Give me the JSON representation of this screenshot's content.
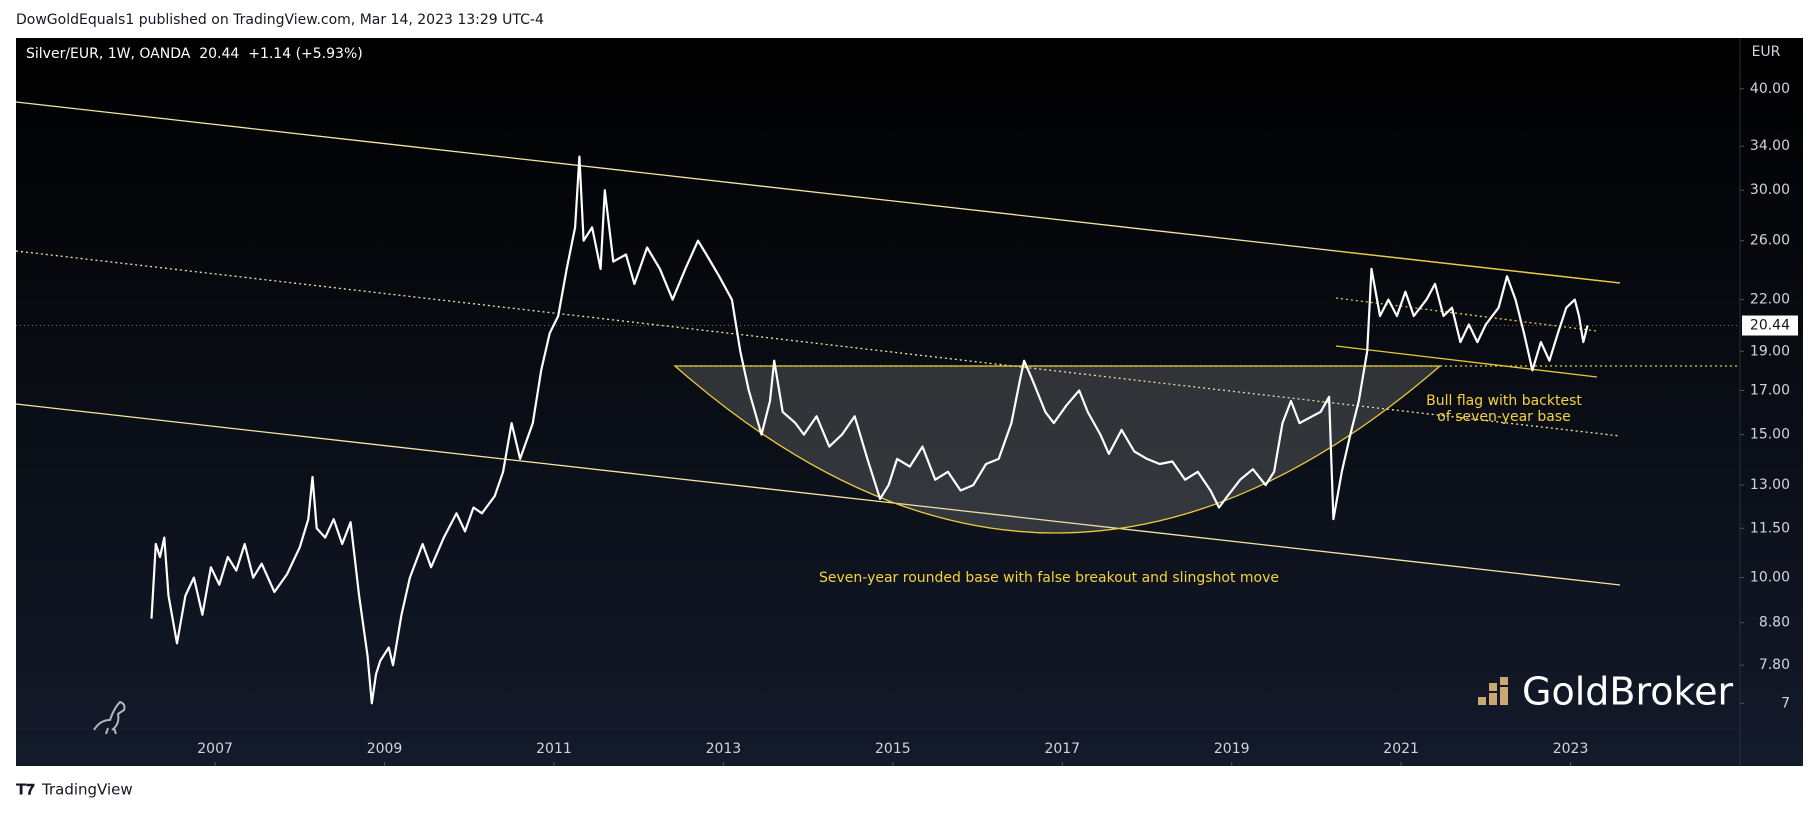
{
  "chart_data": {
    "type": "line",
    "publisher": "DowGoldEquals1 published on TradingView.com, Mar 14, 2023 13:29 UTC-4",
    "title": "Silver/EUR, 1W, OANDA  20.44  +1.14 (+5.93%)",
    "y_axis_label": "EUR",
    "log_scale": true,
    "grid": false,
    "annotations": [
      "Bull flag with backtest",
      "of seven-year base",
      "Seven-year rounded base with false breakout and slingshot move"
    ],
    "watermark": "GoldBroker",
    "footer": "TradingView",
    "xlim": [
      2004.65,
      2025.0
    ],
    "xticks": [
      2007,
      2009,
      2011,
      2013,
      2015,
      2017,
      2019,
      2021,
      2023
    ],
    "ylim": [
      5.86,
      46.2
    ],
    "yticks": [
      7,
      {
        "value": 7.8,
        "label": "7.80"
      },
      {
        "value": 8.8,
        "label": "8.80"
      },
      {
        "value": 10,
        "label": "10.00"
      },
      {
        "value": 11.5,
        "label": "11.50"
      },
      {
        "value": 13,
        "label": "13.00"
      },
      {
        "value": 15,
        "label": "15.00"
      },
      {
        "value": 17,
        "label": "17.00"
      },
      {
        "value": 19,
        "label": "19.00"
      },
      {
        "value": 22,
        "label": "22.00"
      },
      {
        "value": 26,
        "label": "26.00"
      },
      {
        "value": 30,
        "label": "30.00"
      },
      {
        "value": 34,
        "label": "34.00"
      },
      {
        "value": 40,
        "label": "40.00"
      }
    ],
    "x": [
      2006.25,
      2006.3,
      2006.35,
      2006.4,
      2006.45,
      2006.55,
      2006.65,
      2006.75,
      2006.85,
      2006.95,
      2007.05,
      2007.15,
      2007.25,
      2007.35,
      2007.45,
      2007.55,
      2007.7,
      2007.85,
      2008.0,
      2008.1,
      2008.15,
      2008.2,
      2008.3,
      2008.4,
      2008.5,
      2008.6,
      2008.7,
      2008.8,
      2008.85,
      2008.9,
      2008.95,
      2009.05,
      2009.1,
      2009.2,
      2009.3,
      2009.45,
      2009.55,
      2009.7,
      2009.85,
      2009.95,
      2010.05,
      2010.15,
      2010.3,
      2010.4,
      2010.5,
      2010.6,
      2010.75,
      2010.85,
      2010.95,
      2011.05,
      2011.15,
      2011.25,
      2011.3,
      2011.35,
      2011.45,
      2011.55,
      2011.6,
      2011.7,
      2011.85,
      2011.95,
      2012.1,
      2012.25,
      2012.4,
      2012.55,
      2012.7,
      2012.8,
      2012.95,
      2013.1,
      2013.2,
      2013.3,
      2013.45,
      2013.55,
      2013.6,
      2013.7,
      2013.85,
      2013.95,
      2014.1,
      2014.25,
      2014.4,
      2014.55,
      2014.7,
      2014.85,
      2014.95,
      2015.05,
      2015.2,
      2015.35,
      2015.5,
      2015.65,
      2015.8,
      2015.95,
      2016.1,
      2016.25,
      2016.4,
      2016.5,
      2016.55,
      2016.65,
      2016.8,
      2016.9,
      2017.05,
      2017.2,
      2017.3,
      2017.45,
      2017.55,
      2017.7,
      2017.85,
      2018.0,
      2018.15,
      2018.3,
      2018.45,
      2018.6,
      2018.75,
      2018.85,
      2018.95,
      2019.1,
      2019.25,
      2019.4,
      2019.5,
      2019.6,
      2019.7,
      2019.8,
      2019.95,
      2020.05,
      2020.15,
      2020.2,
      2020.3,
      2020.4,
      2020.5,
      2020.6,
      2020.65,
      2020.75,
      2020.85,
      2020.95,
      2021.05,
      2021.15,
      2021.3,
      2021.4,
      2021.5,
      2021.6,
      2021.7,
      2021.8,
      2021.9,
      2022.0,
      2022.15,
      2022.25,
      2022.35,
      2022.45,
      2022.55,
      2022.65,
      2022.75,
      2022.85,
      2022.95,
      2023.05,
      2023.1,
      2023.15,
      2023.2
    ],
    "series": [
      {
        "name": "Silver/EUR",
        "color": "#ffffff",
        "values": [
          8.9,
          11.0,
          10.6,
          11.2,
          9.5,
          8.3,
          9.5,
          10.0,
          9.0,
          10.3,
          9.8,
          10.6,
          10.2,
          11.0,
          10.0,
          10.4,
          9.6,
          10.1,
          10.9,
          11.8,
          13.3,
          11.5,
          11.2,
          11.8,
          11.0,
          11.7,
          9.5,
          8.0,
          7.0,
          7.6,
          7.9,
          8.2,
          7.8,
          9.0,
          10.0,
          11.0,
          10.3,
          11.2,
          12.0,
          11.4,
          12.2,
          12.0,
          12.6,
          13.5,
          15.5,
          14.0,
          15.5,
          18.0,
          20.0,
          21.0,
          24.0,
          27.0,
          33.0,
          26.0,
          27.0,
          24.0,
          30.0,
          24.5,
          25.0,
          23.0,
          25.5,
          24.0,
          22.0,
          24.0,
          26.0,
          25.0,
          23.5,
          22.0,
          19.0,
          17.0,
          15.0,
          16.5,
          18.5,
          16.0,
          15.5,
          15.0,
          15.8,
          14.5,
          15.0,
          15.8,
          14.0,
          12.5,
          13.0,
          14.0,
          13.7,
          14.5,
          13.2,
          13.5,
          12.8,
          13.0,
          13.8,
          14.0,
          15.5,
          17.5,
          18.5,
          17.5,
          16.0,
          15.5,
          16.3,
          17.0,
          16.0,
          15.0,
          14.2,
          15.2,
          14.3,
          14.0,
          13.8,
          13.9,
          13.2,
          13.5,
          12.8,
          12.2,
          12.6,
          13.2,
          13.6,
          13.0,
          13.5,
          15.5,
          16.5,
          15.5,
          15.8,
          16.0,
          16.7,
          11.8,
          13.5,
          15.0,
          16.5,
          19.0,
          24.0,
          21.0,
          22.0,
          21.0,
          22.5,
          21.0,
          22.0,
          23.0,
          21.0,
          21.5,
          19.5,
          20.5,
          19.5,
          20.5,
          21.5,
          23.5,
          22.0,
          20.0,
          18.0,
          19.5,
          18.5,
          20.0,
          21.5,
          22.0,
          21.0,
          19.5,
          20.44
        ]
      }
    ]
  }
}
